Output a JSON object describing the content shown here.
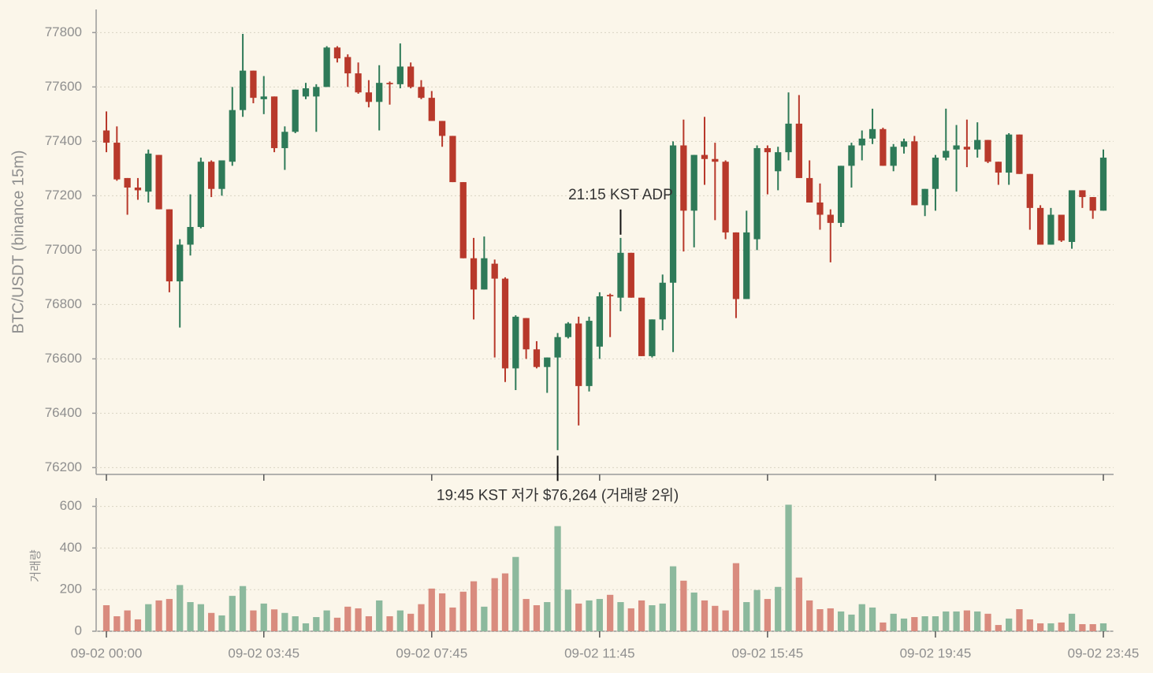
{
  "chart_data": {
    "type": "candlestick",
    "y_label": "BTC/USDT (binance 15m)",
    "volume_label": "거래량",
    "categories": [
      "09-02 00:00",
      null,
      null,
      null,
      null,
      null,
      null,
      null,
      null,
      null,
      null,
      null,
      null,
      null,
      null,
      "09-02 03:45",
      null,
      null,
      null,
      null,
      null,
      null,
      null,
      null,
      null,
      null,
      null,
      null,
      null,
      null,
      null,
      "09-02 07:45",
      null,
      null,
      null,
      null,
      null,
      null,
      null,
      null,
      null,
      null,
      null,
      null,
      null,
      null,
      null,
      "09-02 11:45",
      null,
      null,
      null,
      null,
      null,
      null,
      null,
      null,
      null,
      null,
      null,
      null,
      null,
      null,
      null,
      "09-02 15:45",
      null,
      null,
      null,
      null,
      null,
      null,
      null,
      null,
      null,
      null,
      null,
      null,
      null,
      null,
      null,
      "09-02 19:45",
      null,
      null,
      null,
      null,
      null,
      null,
      null,
      null,
      null,
      null,
      null,
      null,
      null,
      null,
      null,
      "09-02 23:45"
    ],
    "open": [
      77440,
      77395,
      77265,
      77230,
      77215,
      77350,
      77150,
      76885,
      77020,
      77085,
      77325,
      77225,
      77325,
      77515,
      77660,
      77555,
      77565,
      77375,
      77435,
      77565,
      77565,
      77600,
      77745,
      77710,
      77650,
      77580,
      77545,
      77615,
      77610,
      77675,
      77600,
      77560,
      77475,
      77420,
      77250,
      76970,
      76855,
      76950,
      76895,
      76565,
      76750,
      76635,
      76570,
      76605,
      76680,
      76730,
      76500,
      76645,
      76835,
      76825,
      76990,
      76825,
      76610,
      76745,
      76880,
      77385,
      77145,
      77350,
      77335,
      77325,
      77065,
      76820,
      77040,
      77375,
      77290,
      77360,
      77465,
      77265,
      77175,
      77130,
      77100,
      77310,
      77385,
      77410,
      77445,
      77310,
      77380,
      77400,
      77165,
      77225,
      77340,
      77370,
      77380,
      77370,
      77405,
      77325,
      77285,
      77425,
      77280,
      77155,
      77020,
      77130,
      77030,
      77220,
      77195,
      77145
    ],
    "high": [
      77510,
      77455,
      77265,
      77265,
      77370,
      77350,
      77150,
      77040,
      77205,
      77340,
      77330,
      77330,
      77600,
      77795,
      77660,
      77640,
      77565,
      77455,
      77590,
      77615,
      77610,
      77750,
      77750,
      77720,
      77690,
      77625,
      77680,
      77620,
      77760,
      77690,
      77625,
      77585,
      77475,
      77420,
      77250,
      77045,
      77050,
      76965,
      76900,
      76760,
      76750,
      76665,
      76605,
      76695,
      76735,
      76755,
      76755,
      76845,
      76840,
      77045,
      76990,
      76825,
      76745,
      76910,
      77400,
      77480,
      77350,
      77490,
      77395,
      77330,
      77065,
      77145,
      77385,
      77385,
      77380,
      77580,
      77570,
      77330,
      77245,
      77150,
      77310,
      77395,
      77440,
      77520,
      77450,
      77390,
      77410,
      77420,
      77225,
      77350,
      77520,
      77460,
      77480,
      77470,
      77405,
      77325,
      77430,
      77425,
      77280,
      77165,
      77155,
      77130,
      77220,
      77220,
      77195,
      77370
    ],
    "low": [
      77360,
      77255,
      77130,
      77185,
      77175,
      77150,
      76845,
      76715,
      76980,
      77080,
      77195,
      77200,
      77310,
      77490,
      77540,
      77500,
      77360,
      77295,
      77430,
      77555,
      77435,
      77600,
      77690,
      77600,
      77575,
      77525,
      77440,
      77535,
      77595,
      77595,
      77555,
      77475,
      77380,
      77250,
      76970,
      76745,
      76855,
      76605,
      76515,
      76485,
      76600,
      76565,
      76475,
      76264,
      76675,
      76355,
      76480,
      76600,
      76680,
      76775,
      76825,
      76610,
      76605,
      76705,
      76625,
      76995,
      77010,
      77240,
      77110,
      77040,
      76750,
      76820,
      77000,
      77205,
      77220,
      77330,
      77265,
      77175,
      77075,
      76955,
      77085,
      77230,
      77330,
      77390,
      77310,
      77290,
      77355,
      77165,
      77125,
      77145,
      77330,
      77215,
      77305,
      77340,
      77320,
      77240,
      77240,
      77280,
      77075,
      77020,
      77020,
      77030,
      77005,
      77155,
      77115,
      77145
    ],
    "close": [
      77395,
      77260,
      77230,
      77220,
      77355,
      77150,
      76885,
      77020,
      77085,
      77325,
      77225,
      77330,
      77515,
      77660,
      77560,
      77565,
      77375,
      77435,
      77590,
      77595,
      77600,
      77745,
      77705,
      77650,
      77580,
      77545,
      77615,
      77610,
      77675,
      77600,
      77560,
      77475,
      77420,
      77250,
      76970,
      76855,
      76970,
      76895,
      76565,
      76755,
      76635,
      76570,
      76605,
      76680,
      76730,
      76500,
      76740,
      76830,
      76830,
      76990,
      76825,
      76610,
      76745,
      76880,
      77385,
      77145,
      77350,
      77335,
      77325,
      77065,
      76820,
      77065,
      77375,
      77360,
      77360,
      77465,
      77265,
      77175,
      77130,
      77100,
      77310,
      77385,
      77410,
      77445,
      77310,
      77380,
      77400,
      77165,
      77225,
      77340,
      77365,
      77385,
      77370,
      77405,
      77325,
      77285,
      77425,
      77280,
      77155,
      77020,
      77130,
      77035,
      77220,
      77195,
      77145,
      77340
    ],
    "volume": [
      125,
      72,
      100,
      57,
      130,
      148,
      155,
      222,
      140,
      130,
      88,
      76,
      170,
      217,
      100,
      133,
      105,
      88,
      72,
      38,
      68,
      100,
      65,
      118,
      110,
      72,
      148,
      72,
      100,
      84,
      130,
      205,
      182,
      114,
      190,
      240,
      118,
      255,
      278,
      357,
      155,
      125,
      140,
      505,
      200,
      133,
      148,
      155,
      175,
      140,
      110,
      148,
      125,
      133,
      312,
      243,
      186,
      148,
      122,
      100,
      327,
      140,
      198,
      155,
      213,
      608,
      258,
      148,
      106,
      110,
      95,
      80,
      130,
      114,
      42,
      84,
      61,
      68,
      72,
      72,
      95,
      95,
      100,
      95,
      84,
      30,
      61,
      106,
      57,
      38,
      38,
      42,
      84,
      34,
      34,
      38
    ],
    "ylim": [
      76175,
      77885
    ],
    "yticks": [
      76200,
      76400,
      76600,
      76800,
      77000,
      77200,
      77400,
      77600,
      77800
    ],
    "volume_ylim": [
      0,
      640
    ],
    "volume_yticks": [
      0,
      200,
      400,
      600
    ],
    "grid": true,
    "up_color": "#2e7a58",
    "down_color": "#b8392b",
    "volume_up_color": "#8cb99d",
    "volume_down_color": "#d98b7e",
    "annotations": [
      {
        "text": "21:15 KST ADP",
        "at": 49,
        "side": "above"
      },
      {
        "text": "19:45 KST 저가 $76,264 (거래량 2위)",
        "at": 43,
        "side": "below"
      }
    ]
  }
}
